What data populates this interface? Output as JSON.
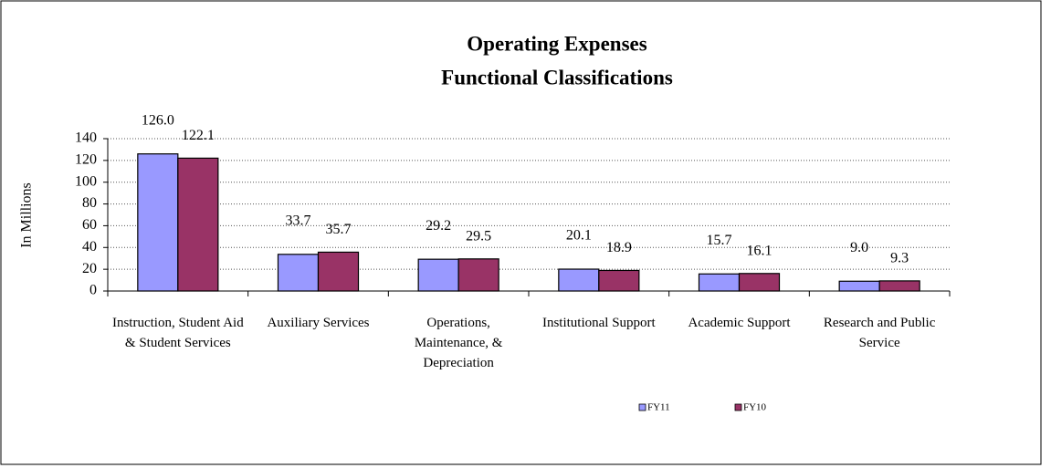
{
  "chart_data": {
    "type": "bar",
    "title": "Operating Expenses",
    "subtitle": "Functional Classifications",
    "y_label": "In Millions",
    "categories": [
      "Instruction, Student Aid & Student Services",
      "Auxiliary Services",
      "Operations, Maintenance, & Depreciation",
      "Institutional Support",
      "Academic Support",
      "Research and Public Service"
    ],
    "series": [
      {
        "name": "FY11",
        "color": "#9999ff",
        "values": [
          126.0,
          33.7,
          29.2,
          20.1,
          15.7,
          9.0
        ],
        "value_labels": [
          "126.0",
          "33.7",
          "29.2",
          "20.1",
          "15.7",
          "9.0"
        ]
      },
      {
        "name": "FY10",
        "color": "#993366",
        "values": [
          122.1,
          35.7,
          29.5,
          18.9,
          16.1,
          9.3
        ],
        "value_labels": [
          "122.1",
          "35.7",
          "29.5",
          "18.9",
          "16.1",
          "9.3"
        ]
      }
    ],
    "ylim": [
      0,
      140
    ],
    "yticks": [
      0,
      20,
      40,
      60,
      80,
      100,
      120,
      140
    ],
    "grid": true,
    "legend": "bottom"
  }
}
